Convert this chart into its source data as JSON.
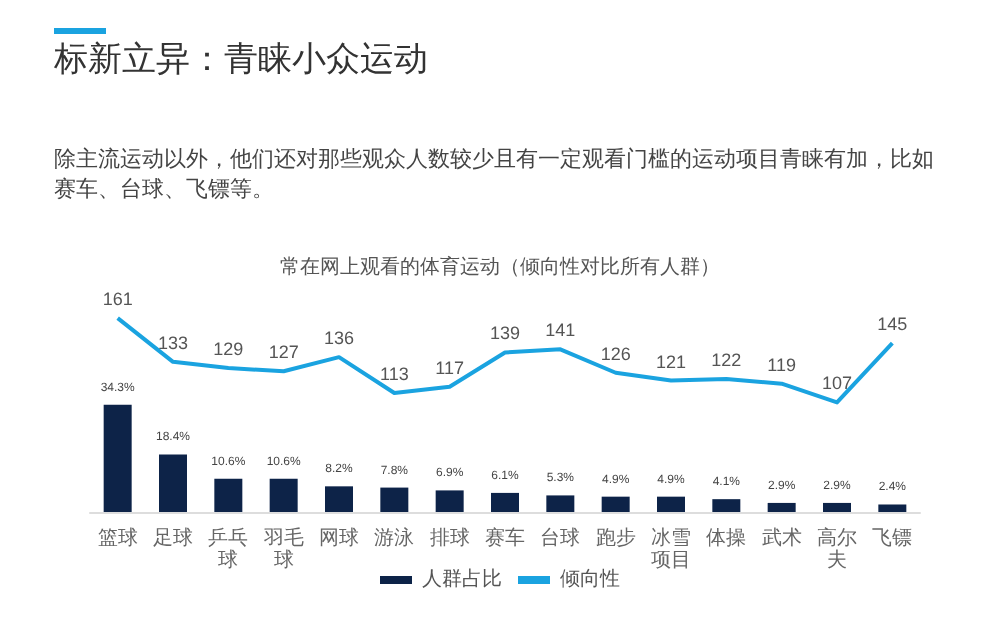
{
  "chart_data": {
    "type": "bar",
    "title": "标新立异：青睐小众运动",
    "subtitle": "除主流运动以外，他们还对那些观众人数较少且有一定观看门槛的运动项目青睐有加，比如赛车、台球、飞镖等。",
    "annotations": [
      "常在网上观看的体育运动（倾向性对比所有人群）"
    ],
    "categories": [
      "篮球",
      "足球",
      "乒乓球",
      "羽毛球",
      "网球",
      "游泳",
      "排球",
      "赛车",
      "台球",
      "跑步",
      "冰雪项目",
      "体操",
      "武术",
      "高尔夫",
      "飞镖"
    ],
    "legend": "bottom",
    "tick_labels": "x",
    "series": [
      {
        "name": "人群占比",
        "color": "#0d2348",
        "values": [
          34.3,
          18.4,
          10.6,
          10.6,
          8.2,
          7.8,
          6.9,
          6.1,
          5.3,
          4.9,
          4.9,
          4.1,
          2.9,
          2.9,
          2.4
        ],
        "value_labels": [
          "34.3%",
          "18.4%",
          "10.6%",
          "10.6%",
          "8.2%",
          "7.8%",
          "6.9%",
          "6.1%",
          "5.3%",
          "4.9%",
          "4.9%",
          "4.1%",
          "2.9%",
          "2.9%",
          "2.4%"
        ]
      },
      {
        "name": "倾向性",
        "type": "line",
        "axis": "y2",
        "color": "#1aa3e0",
        "marker": "none",
        "values": [
          161,
          133,
          129,
          127,
          136,
          113,
          117,
          139,
          141,
          126,
          121,
          122,
          119,
          107,
          145
        ],
        "value_labels": [
          "161",
          "133",
          "129",
          "127",
          "136",
          "113",
          "117",
          "139",
          "141",
          "126",
          "121",
          "122",
          "119",
          "107",
          "145"
        ]
      }
    ]
  }
}
